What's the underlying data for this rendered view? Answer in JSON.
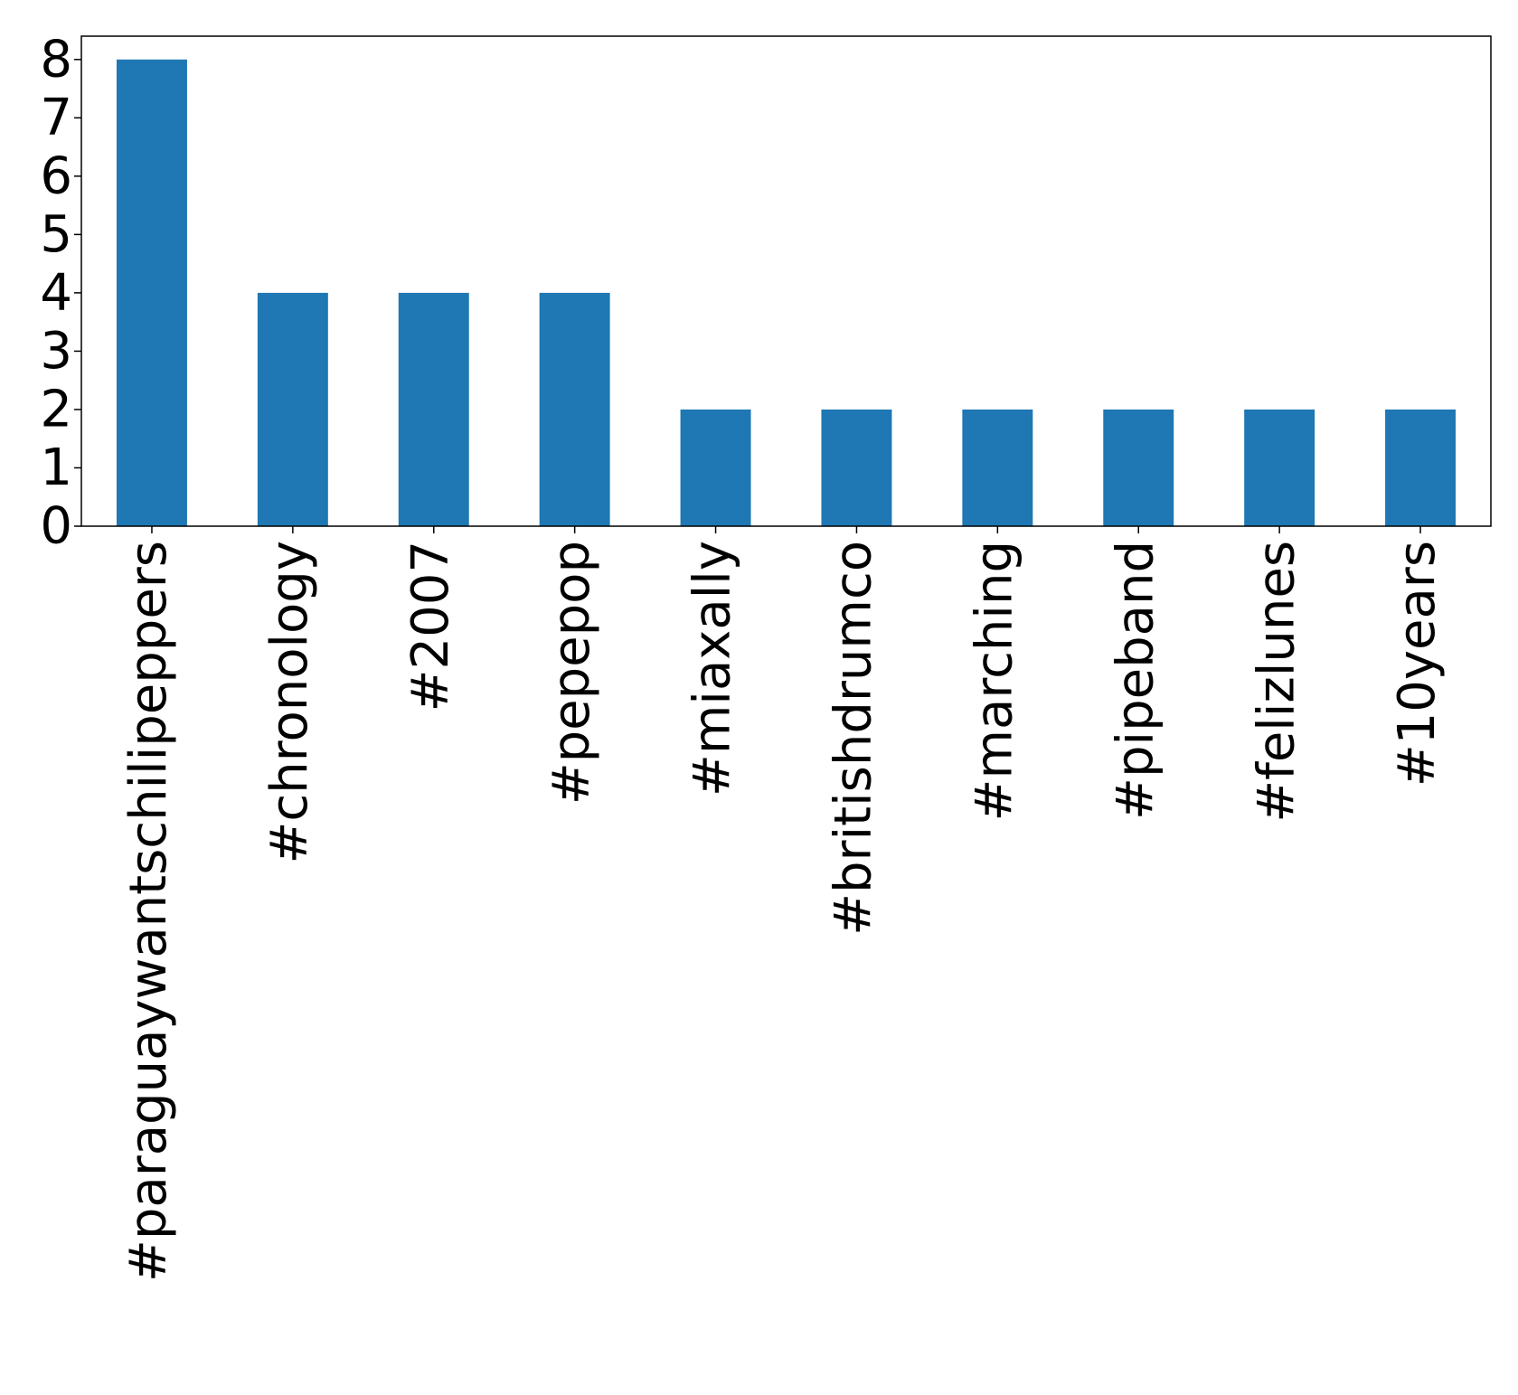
{
  "chart_data": {
    "type": "bar",
    "title": "",
    "xlabel": "",
    "ylabel": "",
    "categories": [
      "#paraguaywantschilipeppers",
      "#chronology",
      "#2007",
      "#pepepop",
      "#miaxally",
      "#britishdrumco",
      "#marching",
      "#pipeband",
      "#felizlunes",
      "#10years"
    ],
    "values": [
      8,
      4,
      4,
      4,
      2,
      2,
      2,
      2,
      2,
      2
    ],
    "ylim": [
      0,
      8.4
    ],
    "yticks": [
      0,
      1,
      2,
      3,
      4,
      5,
      6,
      7,
      8
    ],
    "bar_color": "#1f77b4",
    "grid": false,
    "legend": "none"
  }
}
